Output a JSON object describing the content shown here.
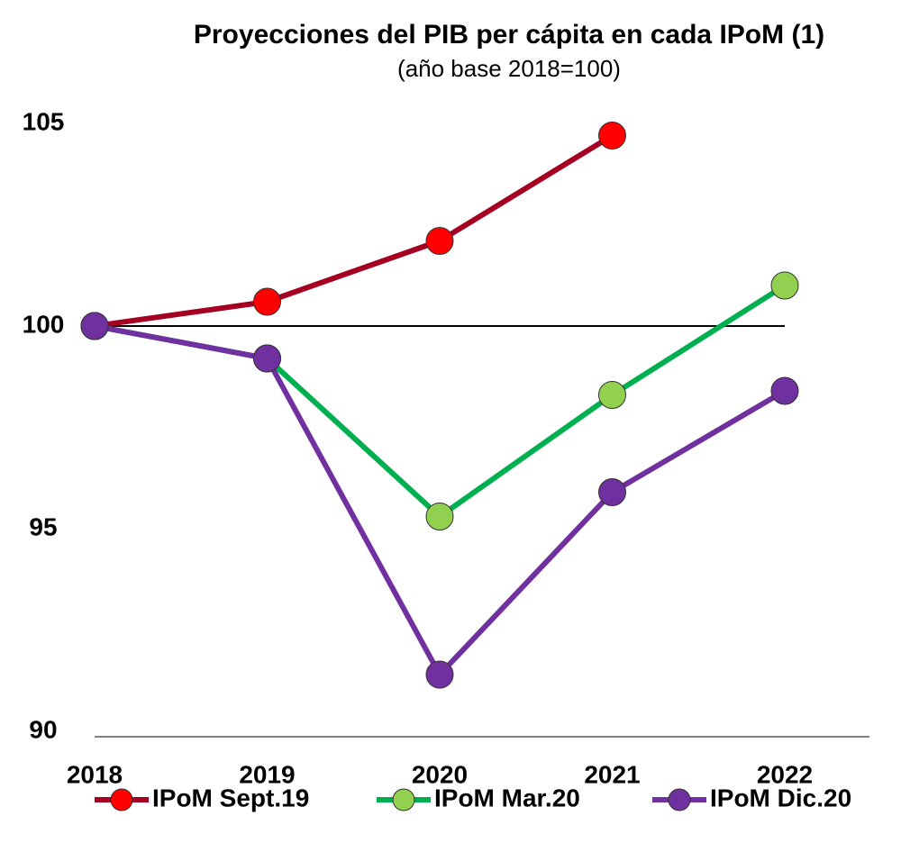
{
  "chart_data": {
    "type": "line",
    "title": "Proyecciones del PIB per cápita en cada IPoM (1)",
    "subtitle": "(año base 2018=100)",
    "categories": [
      "2018",
      "2019",
      "2020",
      "2021",
      "2022"
    ],
    "series": [
      {
        "name": "IPoM Sept.19",
        "color": "#a50021",
        "marker_color": "#ff0000",
        "values": [
          100,
          100.6,
          102.1,
          104.7,
          null
        ]
      },
      {
        "name": "IPoM Mar.20",
        "color": "#00b050",
        "marker_color": "#92d050",
        "values": [
          100,
          99.2,
          95.3,
          98.3,
          101.0
        ]
      },
      {
        "name": "IPoM Dic.20",
        "color": "#7030a0",
        "marker_color": "#7030a0",
        "values": [
          100,
          99.2,
          91.4,
          95.9,
          98.4
        ]
      }
    ],
    "ylim": [
      90,
      105
    ],
    "yticks": [
      90,
      95,
      100,
      105
    ],
    "grid": false,
    "hline": 100,
    "legend": "bottom"
  }
}
